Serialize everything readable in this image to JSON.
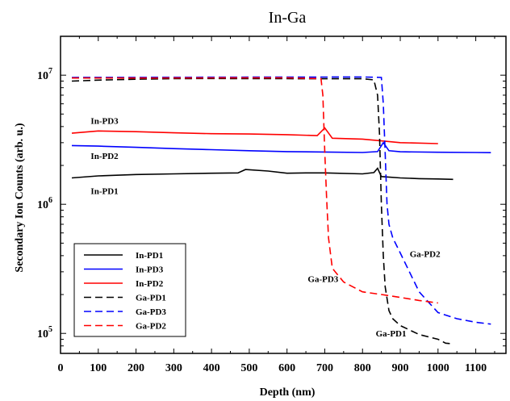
{
  "chart_data": {
    "type": "line",
    "title": "In-Ga",
    "xlabel": "Depth (nm)",
    "ylabel": "Secondary Ion Counts (arb. u.)",
    "xlim": [
      0,
      1180
    ],
    "ylim": [
      70000,
      20000000
    ],
    "yscale": "log",
    "x_ticks": [
      0,
      100,
      200,
      300,
      400,
      500,
      600,
      700,
      800,
      900,
      1000,
      1100
    ],
    "y_ticks": [
      {
        "value": 100000,
        "base": "10",
        "exp": "5"
      },
      {
        "value": 1000000,
        "base": "10",
        "exp": "6"
      },
      {
        "value": 10000000,
        "base": "10",
        "exp": "7"
      }
    ],
    "grid": false,
    "legend_position": "bottom-left",
    "series": [
      {
        "name": "In-PD1",
        "color": "#000000",
        "dash": "solid",
        "x": [
          30,
          100,
          200,
          300,
          400,
          470,
          490,
          550,
          600,
          650,
          700,
          800,
          830,
          840,
          850,
          900,
          950,
          1000,
          1040
        ],
        "y": [
          1600000,
          1660000,
          1700000,
          1720000,
          1740000,
          1750000,
          1860000,
          1810000,
          1740000,
          1750000,
          1750000,
          1720000,
          1760000,
          1900000,
          1640000,
          1600000,
          1580000,
          1570000,
          1560000
        ]
      },
      {
        "name": "In-PD3",
        "color": "#0000ff",
        "dash": "solid",
        "x": [
          30,
          100,
          200,
          300,
          400,
          500,
          600,
          700,
          800,
          840,
          855,
          870,
          900,
          1000,
          1100,
          1140
        ],
        "y": [
          2850000,
          2820000,
          2760000,
          2700000,
          2650000,
          2600000,
          2560000,
          2540000,
          2520000,
          2560000,
          3000000,
          2600000,
          2550000,
          2530000,
          2520000,
          2510000
        ]
      },
      {
        "name": "In-PD2",
        "color": "#ff0000",
        "dash": "solid",
        "x": [
          30,
          100,
          200,
          300,
          400,
          500,
          600,
          680,
          700,
          720,
          800,
          850,
          900,
          1000
        ],
        "y": [
          3550000,
          3700000,
          3650000,
          3580000,
          3520000,
          3500000,
          3460000,
          3400000,
          3900000,
          3250000,
          3200000,
          3100000,
          3000000,
          2950000
        ]
      },
      {
        "name": "Ga-PD1",
        "color": "#000000",
        "dash": "dashed",
        "x": [
          30,
          100,
          200,
          300,
          400,
          500,
          600,
          700,
          800,
          830,
          840,
          845,
          850,
          855,
          860,
          870,
          880,
          900,
          950,
          1000,
          1020,
          1040
        ],
        "y": [
          9000000,
          9150000,
          9300000,
          9400000,
          9420000,
          9400000,
          9400000,
          9380000,
          9380000,
          9200000,
          7000000,
          3500000,
          1000000,
          400000,
          230000,
          150000,
          130000,
          115000,
          98000,
          90000,
          84000,
          83000
        ]
      },
      {
        "name": "Ga-PD3",
        "color": "#0000ff",
        "dash": "dashed",
        "x": [
          30,
          100,
          200,
          300,
          400,
          500,
          600,
          700,
          800,
          850,
          855,
          860,
          865,
          870,
          880,
          900,
          950,
          1000,
          1050,
          1100,
          1140
        ],
        "y": [
          9600000,
          9610000,
          9620000,
          9630000,
          9640000,
          9650000,
          9660000,
          9670000,
          9680000,
          9600000,
          6000000,
          2500000,
          1000000,
          700000,
          550000,
          420000,
          210000,
          145000,
          130000,
          122000,
          118000
        ]
      },
      {
        "name": "Ga-PD2",
        "color": "#ff0000",
        "dash": "dashed",
        "x": [
          30,
          100,
          200,
          300,
          400,
          500,
          600,
          690,
          695,
          700,
          705,
          710,
          720,
          750,
          800,
          850,
          900,
          950,
          1000
        ],
        "y": [
          9500000,
          9500000,
          9510000,
          9520000,
          9530000,
          9540000,
          9550000,
          9400000,
          7000000,
          2500000,
          1100000,
          550000,
          320000,
          250000,
          210000,
          200000,
          190000,
          180000,
          172000
        ]
      }
    ],
    "annotations": [
      {
        "text": "In-PD3",
        "x": 80,
        "y": 4200000
      },
      {
        "text": "In-PD2",
        "x": 80,
        "y": 2250000
      },
      {
        "text": "In-PD1",
        "x": 80,
        "y": 1200000
      },
      {
        "text": "Ga-PD3",
        "x": 655,
        "y": 250000
      },
      {
        "text": "Ga-PD2",
        "x": 925,
        "y": 390000
      },
      {
        "text": "Ga-PD1",
        "x": 835,
        "y": 95000
      }
    ],
    "legend_order": [
      "In-PD1",
      "In-PD3",
      "In-PD2",
      "Ga-PD1",
      "Ga-PD3",
      "Ga-PD2"
    ]
  }
}
